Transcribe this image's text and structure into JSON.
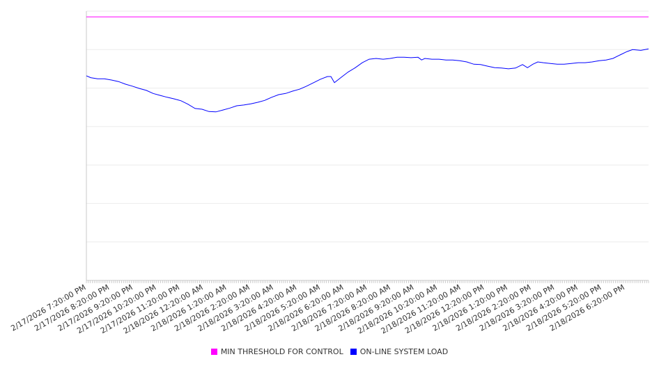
{
  "chart_data": {
    "type": "line",
    "title": "",
    "xlabel": "",
    "ylabel": "",
    "x_unit": "hours from 2/17/2026 7:20:00 PM",
    "xlim": [
      0,
      24
    ],
    "ylim": [
      0,
      7
    ],
    "y_gridlines": [
      1,
      2,
      3,
      4,
      5,
      6,
      7
    ],
    "y_tick_labels_shown": false,
    "grid": true,
    "legend_position": "bottom",
    "x_tick_labels": [
      "2/17/2026 7:20:00 PM",
      "2/17/2026 8:20:00 PM",
      "2/17/2026 9:20:00 PM",
      "2/17/2026 10:20:00 PM",
      "2/17/2026 11:20:00 PM",
      "2/18/2026 12:20:00 AM",
      "2/18/2026 1:20:00 AM",
      "2/18/2026 2:20:00 AM",
      "2/18/2026 3:20:00 AM",
      "2/18/2026 4:20:00 AM",
      "2/18/2026 5:20:00 AM",
      "2/18/2026 6:20:00 AM",
      "2/18/2026 7:20:00 AM",
      "2/18/2026 8:20:00 AM",
      "2/18/2026 9:20:00 AM",
      "2/18/2026 10:20:00 AM",
      "2/18/2026 11:20:00 AM",
      "2/18/2026 12:20:00 PM",
      "2/18/2026 1:20:00 PM",
      "2/18/2026 2:20:00 PM",
      "2/18/2026 3:20:00 PM",
      "2/18/2026 4:20:00 PM",
      "2/18/2026 5:20:00 PM",
      "2/18/2026 6:20:00 PM"
    ],
    "series": [
      {
        "name": "MIN THRESHOLD FOR CONTROL",
        "color": "#ff00ff",
        "points": [
          [
            0,
            6.85
          ],
          [
            24,
            6.85
          ]
        ]
      },
      {
        "name": "ON-LINE SYSTEM LOAD",
        "color": "#0000ff",
        "points": [
          [
            0,
            5.32
          ],
          [
            0.18,
            5.27
          ],
          [
            0.48,
            5.24
          ],
          [
            0.77,
            5.24
          ],
          [
            1.07,
            5.21
          ],
          [
            1.37,
            5.17
          ],
          [
            1.67,
            5.1
          ],
          [
            1.96,
            5.05
          ],
          [
            2.26,
            4.99
          ],
          [
            2.56,
            4.94
          ],
          [
            2.85,
            4.86
          ],
          [
            3.15,
            4.81
          ],
          [
            3.45,
            4.76
          ],
          [
            3.75,
            4.72
          ],
          [
            4.04,
            4.67
          ],
          [
            4.34,
            4.58
          ],
          [
            4.64,
            4.47
          ],
          [
            4.94,
            4.45
          ],
          [
            5.23,
            4.39
          ],
          [
            5.53,
            4.38
          ],
          [
            5.83,
            4.43
          ],
          [
            6.13,
            4.48
          ],
          [
            6.42,
            4.54
          ],
          [
            6.72,
            4.56
          ],
          [
            7.02,
            4.59
          ],
          [
            7.32,
            4.63
          ],
          [
            7.61,
            4.68
          ],
          [
            7.91,
            4.76
          ],
          [
            8.21,
            4.83
          ],
          [
            8.51,
            4.86
          ],
          [
            8.8,
            4.92
          ],
          [
            9.1,
            4.97
          ],
          [
            9.4,
            5.05
          ],
          [
            9.7,
            5.14
          ],
          [
            9.99,
            5.23
          ],
          [
            10.29,
            5.3
          ],
          [
            10.44,
            5.3
          ],
          [
            10.59,
            5.14
          ],
          [
            10.88,
            5.28
          ],
          [
            11.18,
            5.42
          ],
          [
            11.48,
            5.53
          ],
          [
            11.78,
            5.66
          ],
          [
            12.07,
            5.75
          ],
          [
            12.37,
            5.77
          ],
          [
            12.67,
            5.75
          ],
          [
            12.97,
            5.77
          ],
          [
            13.26,
            5.8
          ],
          [
            13.56,
            5.8
          ],
          [
            13.86,
            5.79
          ],
          [
            14.16,
            5.8
          ],
          [
            14.31,
            5.73
          ],
          [
            14.45,
            5.77
          ],
          [
            14.75,
            5.75
          ],
          [
            15.05,
            5.75
          ],
          [
            15.35,
            5.73
          ],
          [
            15.64,
            5.73
          ],
          [
            15.94,
            5.71
          ],
          [
            16.24,
            5.68
          ],
          [
            16.54,
            5.62
          ],
          [
            16.83,
            5.61
          ],
          [
            17.13,
            5.57
          ],
          [
            17.43,
            5.53
          ],
          [
            17.72,
            5.52
          ],
          [
            18.02,
            5.5
          ],
          [
            18.32,
            5.52
          ],
          [
            18.62,
            5.61
          ],
          [
            18.83,
            5.53
          ],
          [
            19.06,
            5.62
          ],
          [
            19.27,
            5.68
          ],
          [
            19.51,
            5.66
          ],
          [
            19.81,
            5.64
          ],
          [
            20.1,
            5.62
          ],
          [
            20.4,
            5.62
          ],
          [
            20.7,
            5.64
          ],
          [
            21.0,
            5.66
          ],
          [
            21.29,
            5.66
          ],
          [
            21.59,
            5.68
          ],
          [
            21.89,
            5.71
          ],
          [
            22.19,
            5.73
          ],
          [
            22.48,
            5.77
          ],
          [
            22.78,
            5.86
          ],
          [
            23.08,
            5.95
          ],
          [
            23.32,
            6.0
          ],
          [
            23.67,
            5.98
          ],
          [
            24.0,
            6.02
          ]
        ]
      }
    ]
  }
}
